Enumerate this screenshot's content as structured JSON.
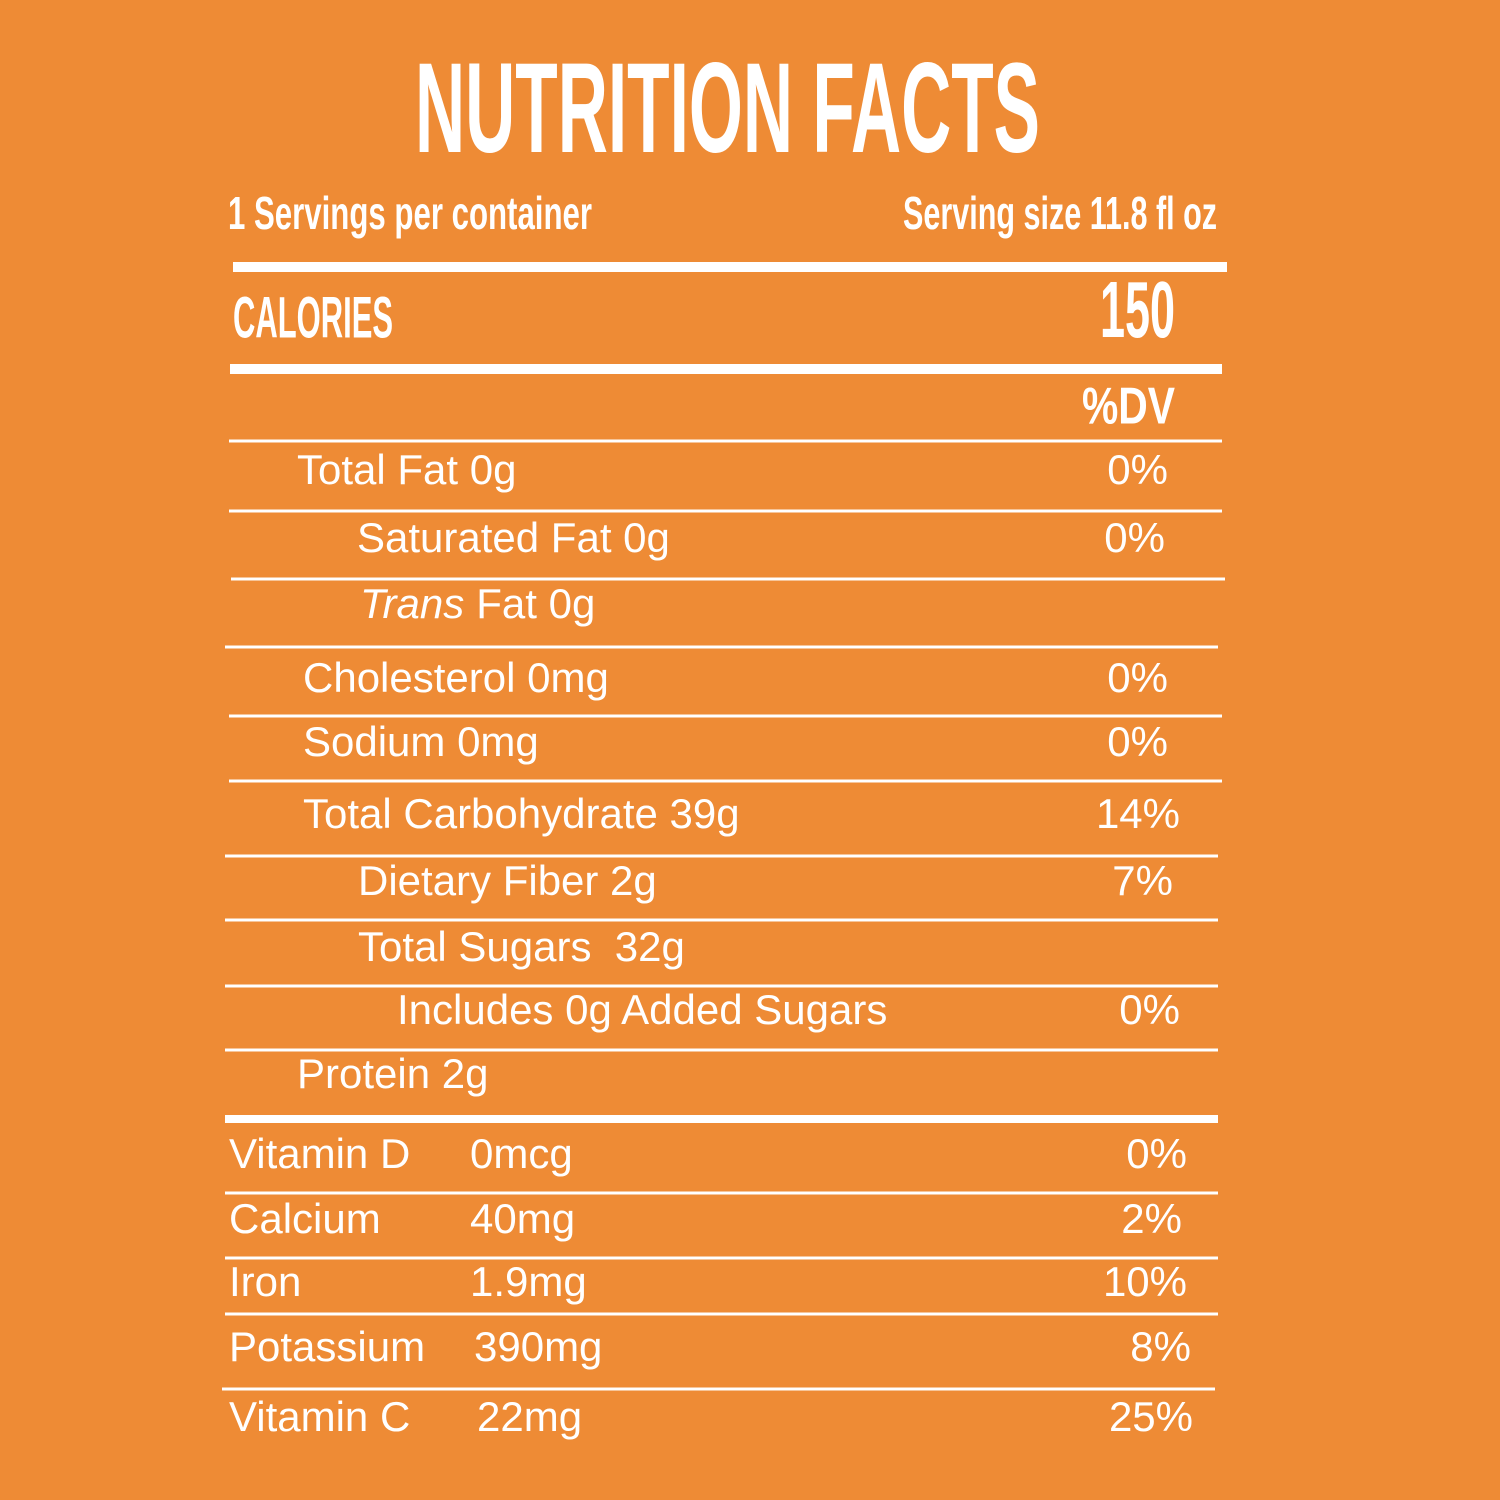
{
  "header": {
    "title": "NUTRITION FACTS",
    "servings": "1 Servings per container",
    "serving_size": "Serving size 11.8 fl oz"
  },
  "calories": {
    "label": "CALORIES",
    "value": "150"
  },
  "dv_header": "%DV",
  "nutrients": [
    {
      "label": "Total Fat 0g",
      "dv": "0%"
    },
    {
      "label": "Saturated Fat 0g",
      "dv": "0%"
    },
    {
      "label_italic": "Trans",
      "label": "Fat 0g"
    },
    {
      "label": "Cholesterol 0mg",
      "dv": "0%"
    },
    {
      "label": "Sodium 0mg",
      "dv": "0%"
    },
    {
      "label": "Total Carbohydrate 39g",
      "dv": "14%"
    },
    {
      "label": "Dietary Fiber 2g",
      "dv": "7%"
    },
    {
      "label": "Total Sugars  32g"
    },
    {
      "label": "Includes 0g Added Sugars",
      "dv": "0%"
    },
    {
      "label": "Protein 2g"
    }
  ],
  "vitamins": [
    {
      "name": "Vitamin D",
      "amount": "0mcg",
      "dv": "0%"
    },
    {
      "name": "Calcium",
      "amount": "40mg",
      "dv": "2%"
    },
    {
      "name": "Iron",
      "amount": "1.9mg",
      "dv": "10%"
    },
    {
      "name": "Potassium",
      "amount": "390mg",
      "dv": "8%"
    },
    {
      "name": "Vitamin C",
      "amount": "22mg",
      "dv": "25%"
    }
  ]
}
